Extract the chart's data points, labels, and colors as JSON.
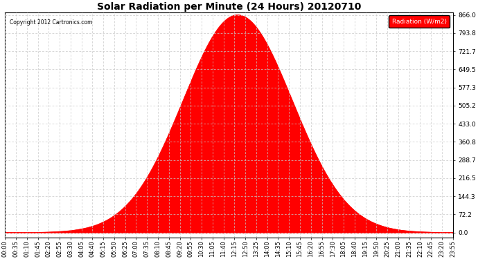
{
  "title": "Solar Radiation per Minute (24 Hours) 20120710",
  "copyright_text": "Copyright 2012 Cartronics.com",
  "legend_label": "Radiation (W/m2)",
  "background_color": "#ffffff",
  "plot_bg_color": "#ffffff",
  "fill_color": "#ff0000",
  "line_color": "#ff0000",
  "grid_color": "#c8c8c8",
  "dashed_zero_color": "#ff0000",
  "ytick_labels": [
    "0.0",
    "72.2",
    "144.3",
    "216.5",
    "288.7",
    "360.8",
    "433.0",
    "505.2",
    "577.3",
    "649.5",
    "721.7",
    "793.8",
    "866.0"
  ],
  "ytick_values": [
    0.0,
    72.2,
    144.3,
    216.5,
    288.7,
    360.8,
    433.0,
    505.2,
    577.3,
    649.5,
    721.7,
    793.8,
    866.0
  ],
  "ymax": 866.0,
  "peak_value": 866.0,
  "peak_minute": 745,
  "sigma_minutes": 175,
  "total_minutes": 1435,
  "xtick_step_minutes": 35,
  "xtick_labels": [
    "00:00",
    "00:35",
    "01:10",
    "01:45",
    "02:20",
    "02:55",
    "03:30",
    "04:05",
    "04:40",
    "05:15",
    "05:50",
    "06:25",
    "07:00",
    "07:35",
    "08:10",
    "08:45",
    "09:20",
    "09:55",
    "10:30",
    "11:05",
    "11:40",
    "12:15",
    "12:50",
    "13:25",
    "14:00",
    "14:35",
    "15:10",
    "15:45",
    "16:20",
    "16:55",
    "17:30",
    "18:05",
    "18:40",
    "19:15",
    "19:50",
    "20:25",
    "21:00",
    "21:35",
    "22:10",
    "22:45",
    "23:20",
    "23:55"
  ]
}
